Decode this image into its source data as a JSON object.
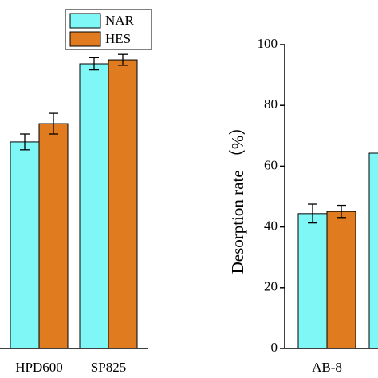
{
  "chart_data": [
    {
      "type": "bar",
      "categories": [
        "HPD600",
        "SP825"
      ],
      "series": [
        {
          "name": "NAR",
          "color": "#80f7f7",
          "values": [
            68,
            93.7
          ],
          "errors": [
            2.6,
            2
          ]
        },
        {
          "name": "HES",
          "color": "#e07b20",
          "values": [
            74,
            95
          ],
          "errors": [
            3.4,
            1.8
          ]
        }
      ],
      "ylim": [
        0,
        100
      ]
    },
    {
      "type": "bar",
      "y_label": "Desorption rate （%）",
      "categories": [
        "AB-8",
        null
      ],
      "series": [
        {
          "name": "NAR",
          "color": "#80f7f7",
          "values": [
            44.4,
            64.3
          ],
          "errors": [
            3.1,
            null
          ]
        },
        {
          "name": "HES",
          "color": "#e07b20",
          "values": [
            45.1,
            null
          ],
          "errors": [
            2,
            null
          ]
        }
      ],
      "ylim": [
        0,
        100
      ],
      "yticks": [
        0,
        20,
        40,
        60,
        80,
        100
      ]
    }
  ]
}
